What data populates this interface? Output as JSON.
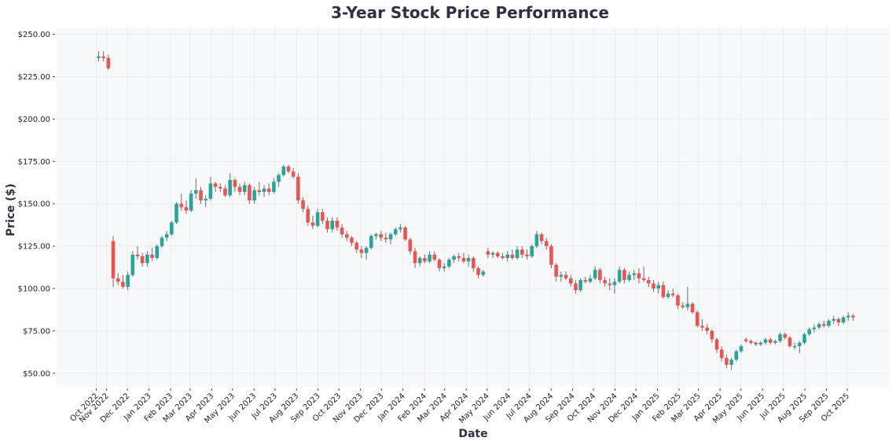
{
  "chart_data": {
    "type": "candlestick",
    "title": "3-Year Stock Price Performance",
    "xlabel": "Date",
    "ylabel": "Price ($)",
    "ylim": [
      42,
      254
    ],
    "xlim": [
      "2022-08-21",
      "2025-12-01"
    ],
    "grid": true,
    "colors": {
      "up": "#26a69a",
      "down": "#ef5350",
      "wick": "#6b6b6b",
      "background": "#f7f8fa",
      "grid": "#e6e8ec",
      "text": "#2d3142"
    },
    "y_ticks": [
      {
        "value": 50,
        "label": "$50.00"
      },
      {
        "value": 75,
        "label": "$75.00"
      },
      {
        "value": 100,
        "label": "$100.00"
      },
      {
        "value": 125,
        "label": "$125.00"
      },
      {
        "value": 150,
        "label": "$150.00"
      },
      {
        "value": 175,
        "label": "$175.00"
      },
      {
        "value": 200,
        "label": "$200.00"
      },
      {
        "value": 225,
        "label": "$225.00"
      },
      {
        "value": 250,
        "label": "$250.00"
      }
    ],
    "x_ticks": [
      {
        "date": "2022-10-17",
        "label": "Oct 2022"
      },
      {
        "date": "2022-11-01",
        "label": "Nov 2022"
      },
      {
        "date": "2022-12-01",
        "label": "Dec 2022"
      },
      {
        "date": "2023-01-01",
        "label": "Jan 2023"
      },
      {
        "date": "2023-02-01",
        "label": "Feb 2023"
      },
      {
        "date": "2023-03-01",
        "label": "Mar 2023"
      },
      {
        "date": "2023-04-01",
        "label": "Apr 2023"
      },
      {
        "date": "2023-05-01",
        "label": "May 2023"
      },
      {
        "date": "2023-06-01",
        "label": "Jun 2023"
      },
      {
        "date": "2023-07-01",
        "label": "Jul 2023"
      },
      {
        "date": "2023-08-01",
        "label": "Aug 2023"
      },
      {
        "date": "2023-09-01",
        "label": "Sep 2023"
      },
      {
        "date": "2023-10-01",
        "label": "Oct 2023"
      },
      {
        "date": "2023-11-01",
        "label": "Nov 2023"
      },
      {
        "date": "2023-12-01",
        "label": "Dec 2023"
      },
      {
        "date": "2024-01-01",
        "label": "Jan 2024"
      },
      {
        "date": "2024-02-01",
        "label": "Feb 2024"
      },
      {
        "date": "2024-03-01",
        "label": "Mar 2024"
      },
      {
        "date": "2024-04-01",
        "label": "Apr 2024"
      },
      {
        "date": "2024-05-01",
        "label": "May 2024"
      },
      {
        "date": "2024-06-01",
        "label": "Jun 2024"
      },
      {
        "date": "2024-07-01",
        "label": "Jul 2024"
      },
      {
        "date": "2024-08-01",
        "label": "Aug 2024"
      },
      {
        "date": "2024-09-01",
        "label": "Sep 2024"
      },
      {
        "date": "2024-10-01",
        "label": "Oct 2024"
      },
      {
        "date": "2024-11-01",
        "label": "Nov 2024"
      },
      {
        "date": "2024-12-01",
        "label": "Dec 2024"
      },
      {
        "date": "2025-01-01",
        "label": "Jan 2025"
      },
      {
        "date": "2025-02-01",
        "label": "Feb 2025"
      },
      {
        "date": "2025-03-01",
        "label": "Mar 2025"
      },
      {
        "date": "2025-04-01",
        "label": "Apr 2025"
      },
      {
        "date": "2025-05-01",
        "label": "May 2025"
      },
      {
        "date": "2025-06-01",
        "label": "Jun 2025"
      },
      {
        "date": "2025-07-01",
        "label": "Jul 2025"
      },
      {
        "date": "2025-08-01",
        "label": "Aug 2025"
      },
      {
        "date": "2025-09-01",
        "label": "Sep 2025"
      },
      {
        "date": "2025-10-01",
        "label": "Oct 2025"
      }
    ],
    "columns": [
      "date",
      "open",
      "high",
      "low",
      "close"
    ],
    "candles": [
      [
        "2022-10-17",
        236,
        240,
        234,
        237
      ],
      [
        "2022-10-24",
        237,
        240,
        234,
        236
      ],
      [
        "2022-10-31",
        236,
        238,
        229,
        230
      ],
      [
        "2022-11-07",
        128,
        131,
        101,
        106
      ],
      [
        "2022-11-14",
        106,
        109,
        102,
        104
      ],
      [
        "2022-11-21",
        104,
        108,
        100,
        101
      ],
      [
        "2022-11-28",
        101,
        110,
        99,
        108
      ],
      [
        "2022-12-05",
        108,
        122,
        107,
        120
      ],
      [
        "2022-12-12",
        120,
        125,
        117,
        119
      ],
      [
        "2022-12-19",
        119,
        121,
        113,
        115
      ],
      [
        "2022-12-26",
        115,
        122,
        113,
        120
      ],
      [
        "2023-01-02",
        120,
        124,
        116,
        118
      ],
      [
        "2023-01-09",
        118,
        126,
        117,
        125
      ],
      [
        "2023-01-16",
        125,
        131,
        124,
        130
      ],
      [
        "2023-01-23",
        130,
        134,
        128,
        132
      ],
      [
        "2023-01-30",
        132,
        140,
        131,
        139
      ],
      [
        "2023-02-06",
        139,
        151,
        138,
        150
      ],
      [
        "2023-02-13",
        150,
        156,
        146,
        148
      ],
      [
        "2023-02-20",
        148,
        152,
        144,
        146
      ],
      [
        "2023-02-27",
        146,
        158,
        145,
        156
      ],
      [
        "2023-03-06",
        156,
        165,
        153,
        158
      ],
      [
        "2023-03-13",
        158,
        160,
        150,
        152
      ],
      [
        "2023-03-20",
        152,
        155,
        148,
        153
      ],
      [
        "2023-03-27",
        153,
        166,
        152,
        162
      ],
      [
        "2023-04-03",
        162,
        163,
        157,
        160
      ],
      [
        "2023-04-10",
        160,
        162,
        157,
        159
      ],
      [
        "2023-04-17",
        159,
        161,
        154,
        155
      ],
      [
        "2023-04-24",
        155,
        168,
        154,
        164
      ],
      [
        "2023-05-01",
        164,
        165,
        157,
        160
      ],
      [
        "2023-05-08",
        160,
        162,
        155,
        157
      ],
      [
        "2023-05-15",
        157,
        163,
        155,
        161
      ],
      [
        "2023-05-22",
        161,
        162,
        150,
        152
      ],
      [
        "2023-05-29",
        152,
        160,
        150,
        158
      ],
      [
        "2023-06-05",
        158,
        163,
        155,
        157
      ],
      [
        "2023-06-12",
        157,
        161,
        154,
        159
      ],
      [
        "2023-06-19",
        159,
        162,
        155,
        157
      ],
      [
        "2023-06-26",
        157,
        165,
        156,
        163
      ],
      [
        "2023-07-03",
        163,
        168,
        160,
        167
      ],
      [
        "2023-07-10",
        167,
        173,
        166,
        172
      ],
      [
        "2023-07-17",
        172,
        173,
        168,
        169
      ],
      [
        "2023-07-24",
        169,
        171,
        165,
        166
      ],
      [
        "2023-07-31",
        166,
        168,
        150,
        152
      ],
      [
        "2023-08-07",
        152,
        154,
        145,
        147
      ],
      [
        "2023-08-14",
        147,
        149,
        137,
        139
      ],
      [
        "2023-08-21",
        139,
        143,
        135,
        137
      ],
      [
        "2023-08-28",
        137,
        147,
        136,
        145
      ],
      [
        "2023-09-04",
        145,
        147,
        138,
        140
      ],
      [
        "2023-09-11",
        140,
        142,
        133,
        135
      ],
      [
        "2023-09-18",
        135,
        142,
        133,
        140
      ],
      [
        "2023-09-25",
        140,
        142,
        134,
        136
      ],
      [
        "2023-10-02",
        136,
        138,
        130,
        132
      ],
      [
        "2023-10-09",
        132,
        134,
        128,
        130
      ],
      [
        "2023-10-16",
        130,
        131,
        125,
        127
      ],
      [
        "2023-10-23",
        127,
        128,
        121,
        123
      ],
      [
        "2023-10-30",
        123,
        125,
        118,
        121
      ],
      [
        "2023-11-06",
        121,
        125,
        117,
        124
      ],
      [
        "2023-11-13",
        124,
        132,
        123,
        131
      ],
      [
        "2023-11-20",
        131,
        133,
        129,
        132
      ],
      [
        "2023-11-27",
        132,
        134,
        128,
        130
      ],
      [
        "2023-12-04",
        130,
        133,
        127,
        129
      ],
      [
        "2023-12-11",
        129,
        133,
        126,
        132
      ],
      [
        "2023-12-18",
        132,
        136,
        131,
        135
      ],
      [
        "2023-12-25",
        135,
        138,
        133,
        136
      ],
      [
        "2024-01-01",
        136,
        137,
        128,
        129
      ],
      [
        "2024-01-08",
        129,
        130,
        120,
        122
      ],
      [
        "2024-01-15",
        122,
        124,
        112,
        115
      ],
      [
        "2024-01-22",
        115,
        119,
        113,
        118
      ],
      [
        "2024-01-29",
        118,
        120,
        115,
        116
      ],
      [
        "2024-02-05",
        116,
        122,
        115,
        120
      ],
      [
        "2024-02-12",
        120,
        122,
        116,
        117
      ],
      [
        "2024-02-19",
        117,
        118,
        110,
        112
      ],
      [
        "2024-02-26",
        112,
        115,
        110,
        113
      ],
      [
        "2024-03-04",
        113,
        118,
        112,
        117
      ],
      [
        "2024-03-11",
        117,
        120,
        115,
        119
      ],
      [
        "2024-03-18",
        119,
        121,
        116,
        118
      ],
      [
        "2024-03-25",
        118,
        121,
        115,
        116
      ],
      [
        "2024-04-01",
        116,
        120,
        113,
        118
      ],
      [
        "2024-04-08",
        118,
        119,
        110,
        112
      ],
      [
        "2024-04-15",
        112,
        113,
        106,
        108
      ],
      [
        "2024-04-22",
        108,
        111,
        107,
        110
      ],
      [
        "2024-04-29",
        122,
        124,
        118,
        120
      ],
      [
        "2024-05-06",
        120,
        122,
        118,
        121
      ],
      [
        "2024-05-13",
        121,
        122,
        118,
        119
      ],
      [
        "2024-05-20",
        119,
        121,
        117,
        118
      ],
      [
        "2024-05-27",
        118,
        122,
        116,
        120
      ],
      [
        "2024-06-03",
        120,
        123,
        117,
        118
      ],
      [
        "2024-06-10",
        118,
        125,
        117,
        123
      ],
      [
        "2024-06-17",
        123,
        125,
        118,
        120
      ],
      [
        "2024-06-24",
        120,
        123,
        117,
        119
      ],
      [
        "2024-07-01",
        119,
        126,
        118,
        125
      ],
      [
        "2024-07-08",
        125,
        134,
        124,
        132
      ],
      [
        "2024-07-15",
        132,
        133,
        126,
        128
      ],
      [
        "2024-07-22",
        128,
        130,
        123,
        125
      ],
      [
        "2024-07-29",
        125,
        126,
        112,
        114
      ],
      [
        "2024-08-05",
        114,
        115,
        104,
        107
      ],
      [
        "2024-08-12",
        107,
        110,
        104,
        108
      ],
      [
        "2024-08-19",
        108,
        110,
        105,
        106
      ],
      [
        "2024-08-26",
        106,
        108,
        101,
        103
      ],
      [
        "2024-09-02",
        103,
        105,
        97,
        99
      ],
      [
        "2024-09-09",
        99,
        106,
        98,
        105
      ],
      [
        "2024-09-16",
        105,
        107,
        103,
        104
      ],
      [
        "2024-09-23",
        104,
        108,
        103,
        106
      ],
      [
        "2024-09-30",
        106,
        113,
        105,
        111
      ],
      [
        "2024-10-07",
        111,
        112,
        103,
        105
      ],
      [
        "2024-10-14",
        105,
        107,
        101,
        103
      ],
      [
        "2024-10-21",
        103,
        106,
        99,
        102
      ],
      [
        "2024-10-28",
        102,
        106,
        97,
        104
      ],
      [
        "2024-11-04",
        104,
        113,
        103,
        111
      ],
      [
        "2024-11-11",
        111,
        112,
        103,
        105
      ],
      [
        "2024-11-18",
        105,
        110,
        104,
        108
      ],
      [
        "2024-11-25",
        108,
        111,
        105,
        109
      ],
      [
        "2024-12-02",
        109,
        112,
        103,
        106
      ],
      [
        "2024-12-09",
        106,
        113,
        104,
        105
      ],
      [
        "2024-12-16",
        105,
        107,
        101,
        103
      ],
      [
        "2024-12-23",
        103,
        105,
        98,
        100
      ],
      [
        "2024-12-30",
        100,
        104,
        97,
        102
      ],
      [
        "2025-01-06",
        102,
        104,
        94,
        95
      ],
      [
        "2025-01-13",
        95,
        99,
        94,
        97
      ],
      [
        "2025-01-20",
        97,
        100,
        95,
        96
      ],
      [
        "2025-01-27",
        96,
        97,
        88,
        90
      ],
      [
        "2025-02-03",
        90,
        92,
        88,
        89
      ],
      [
        "2025-02-10",
        89,
        101,
        87,
        91
      ],
      [
        "2025-02-17",
        91,
        92,
        85,
        86
      ],
      [
        "2025-02-24",
        86,
        87,
        77,
        78
      ],
      [
        "2025-03-03",
        78,
        82,
        75,
        77
      ],
      [
        "2025-03-10",
        77,
        79,
        73,
        75
      ],
      [
        "2025-03-17",
        75,
        76,
        68,
        70
      ],
      [
        "2025-03-24",
        70,
        71,
        62,
        64
      ],
      [
        "2025-03-31",
        64,
        66,
        57,
        59
      ],
      [
        "2025-04-07",
        59,
        61,
        53,
        55
      ],
      [
        "2025-04-14",
        55,
        59,
        52,
        58
      ],
      [
        "2025-04-21",
        58,
        64,
        57,
        63
      ],
      [
        "2025-04-28",
        63,
        67,
        62,
        66
      ],
      [
        "2025-05-05",
        70,
        71,
        68,
        69
      ],
      [
        "2025-05-12",
        69,
        70,
        67,
        68
      ],
      [
        "2025-05-19",
        68,
        69,
        66,
        67
      ],
      [
        "2025-05-26",
        67,
        69,
        66,
        68
      ],
      [
        "2025-06-02",
        68,
        71,
        67,
        70
      ],
      [
        "2025-06-09",
        70,
        71,
        67,
        68
      ],
      [
        "2025-06-16",
        68,
        70,
        67,
        69
      ],
      [
        "2025-06-23",
        69,
        74,
        68,
        73
      ],
      [
        "2025-06-30",
        73,
        74,
        70,
        71
      ],
      [
        "2025-07-07",
        71,
        72,
        65,
        66
      ],
      [
        "2025-07-14",
        66,
        68,
        64,
        66
      ],
      [
        "2025-07-21",
        66,
        69,
        62,
        68
      ],
      [
        "2025-07-28",
        68,
        74,
        67,
        73
      ],
      [
        "2025-08-04",
        73,
        77,
        72,
        76
      ],
      [
        "2025-08-11",
        76,
        79,
        74,
        77
      ],
      [
        "2025-08-18",
        77,
        80,
        76,
        79
      ],
      [
        "2025-08-25",
        79,
        81,
        77,
        78
      ],
      [
        "2025-09-01",
        78,
        82,
        77,
        81
      ],
      [
        "2025-09-08",
        81,
        84,
        79,
        82
      ],
      [
        "2025-09-15",
        82,
        83,
        78,
        80
      ],
      [
        "2025-09-22",
        80,
        84,
        79,
        83
      ],
      [
        "2025-09-29",
        83,
        86,
        81,
        84
      ],
      [
        "2025-10-06",
        84,
        85,
        81,
        83
      ]
    ]
  }
}
